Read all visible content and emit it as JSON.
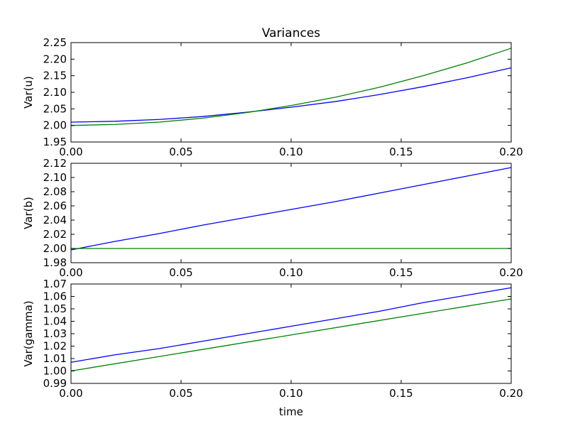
{
  "figure": {
    "title": "Variances",
    "xlabel": "time"
  },
  "chart_data": [
    {
      "type": "line",
      "ylabel": "Var(u)",
      "xlim": [
        0.0,
        0.2
      ],
      "ylim": [
        1.95,
        2.25
      ],
      "xticks": [
        "0.00",
        "0.05",
        "0.10",
        "0.15",
        "0.20"
      ],
      "yticks": [
        "1.95",
        "2.00",
        "2.05",
        "2.10",
        "2.15",
        "2.20",
        "2.25"
      ],
      "grid": false,
      "series": [
        {
          "color": "#0000ff",
          "x": [
            0.0,
            0.02,
            0.04,
            0.06,
            0.08,
            0.1,
            0.12,
            0.14,
            0.16,
            0.18,
            0.2
          ],
          "y": [
            2.01,
            2.0125,
            2.018,
            2.027,
            2.04,
            2.055,
            2.072,
            2.093,
            2.117,
            2.144,
            2.174
          ]
        },
        {
          "color": "#008000",
          "x": [
            0.0,
            0.02,
            0.04,
            0.06,
            0.08,
            0.1,
            0.12,
            0.14,
            0.16,
            0.18,
            0.2
          ],
          "y": [
            2.0,
            2.003,
            2.01,
            2.022,
            2.039,
            2.06,
            2.085,
            2.115,
            2.15,
            2.189,
            2.233
          ]
        }
      ]
    },
    {
      "type": "line",
      "ylabel": "Var(b)",
      "xlim": [
        0.0,
        0.2
      ],
      "ylim": [
        1.98,
        2.12
      ],
      "xticks": [
        "0.00",
        "0.05",
        "0.10",
        "0.15",
        "0.20"
      ],
      "yticks": [
        "1.98",
        "2.00",
        "2.02",
        "2.04",
        "2.06",
        "2.08",
        "2.10",
        "2.12"
      ],
      "grid": false,
      "series": [
        {
          "color": "#0000ff",
          "x": [
            0.0,
            0.02,
            0.04,
            0.06,
            0.08,
            0.1,
            0.12,
            0.14,
            0.16,
            0.18,
            0.2
          ],
          "y": [
            1.998,
            2.01,
            2.021,
            2.033,
            2.044,
            2.055,
            2.066,
            2.078,
            2.09,
            2.102,
            2.114
          ]
        },
        {
          "color": "#008000",
          "x": [
            0.0,
            0.2
          ],
          "y": [
            2.0,
            2.0
          ]
        }
      ]
    },
    {
      "type": "line",
      "ylabel": "Var(gamma)",
      "xlim": [
        0.0,
        0.2
      ],
      "ylim": [
        0.99,
        1.07
      ],
      "xticks": [
        "0.00",
        "0.05",
        "0.10",
        "0.15",
        "0.20"
      ],
      "yticks": [
        "0.99",
        "1.00",
        "1.01",
        "1.02",
        "1.03",
        "1.04",
        "1.05",
        "1.06",
        "1.07"
      ],
      "grid": false,
      "series": [
        {
          "color": "#0000ff",
          "x": [
            0.0,
            0.02,
            0.04,
            0.06,
            0.08,
            0.1,
            0.12,
            0.14,
            0.16,
            0.18,
            0.2
          ],
          "y": [
            1.007,
            1.013,
            1.018,
            1.024,
            1.03,
            1.036,
            1.042,
            1.048,
            1.055,
            1.061,
            1.067
          ]
        },
        {
          "color": "#008000",
          "x": [
            0.0,
            0.2
          ],
          "y": [
            1.0,
            1.058
          ]
        }
      ]
    }
  ]
}
